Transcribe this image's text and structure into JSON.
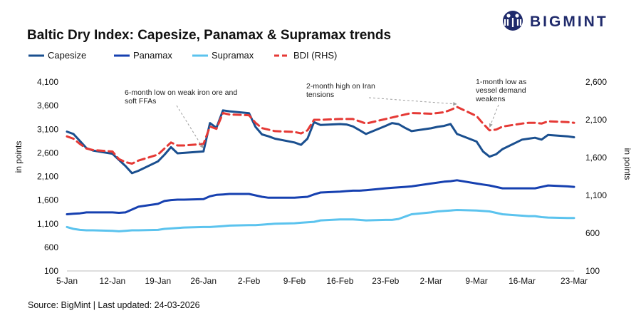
{
  "brand": {
    "name": "BIGMINT",
    "color": "#1f2a6b"
  },
  "source": "Source: BigMint | Last updated: 24-03-2026",
  "chart_data": {
    "type": "line",
    "title": "Baltic Dry Index: Capesize, Panamax & Supramax trends",
    "ylabel": "in points",
    "y2label": "in points",
    "ylim": [
      100,
      4100
    ],
    "y2lim": [
      100,
      2600
    ],
    "yticks": [
      "4,100",
      "3,600",
      "3,100",
      "2,600",
      "2,100",
      "1,600",
      "1,100",
      "600",
      "100"
    ],
    "y2ticks": [
      "2,600",
      "2,100",
      "1,600",
      "1,100",
      "600",
      "100"
    ],
    "xticks": [
      "5-Jan",
      "12-Jan",
      "19-Jan",
      "26-Jan",
      "2-Feb",
      "9-Feb",
      "16-Feb",
      "23-Feb",
      "2-Mar",
      "9-Mar",
      "16-Mar",
      "23-Mar"
    ],
    "grid": false,
    "legend_position": "top-left",
    "x": [
      5,
      6,
      7,
      8,
      9,
      12,
      13,
      14,
      15,
      16,
      19,
      20,
      21,
      22,
      23,
      26,
      27,
      28,
      29,
      30,
      33,
      34,
      35,
      36,
      37,
      40,
      41,
      42,
      43,
      44,
      47,
      48,
      49,
      50,
      51,
      54,
      55,
      56,
      57,
      58,
      61,
      62,
      63,
      64,
      65,
      68,
      69,
      70,
      71,
      72,
      75,
      76,
      77,
      78,
      79,
      82,
      83
    ],
    "x_unit": "day of year 2026 (5 = 5-Jan)",
    "series": [
      {
        "name": "Capesize",
        "axis": "left",
        "color": "#1a4f8f",
        "dash": false,
        "values": [
          3050,
          3000,
          2850,
          2700,
          2650,
          2580,
          2450,
          2320,
          2170,
          2220,
          2420,
          2560,
          2720,
          2590,
          2600,
          2630,
          3230,
          3130,
          3500,
          3480,
          3440,
          3150,
          2990,
          2950,
          2900,
          2820,
          2770,
          2900,
          3250,
          3190,
          3210,
          3200,
          3160,
          3080,
          3000,
          3170,
          3230,
          3210,
          3130,
          3060,
          3120,
          3150,
          3170,
          3210,
          3000,
          2840,
          2630,
          2520,
          2570,
          2680,
          2880,
          2900,
          2920,
          2880,
          2980,
          2950,
          2930
        ]
      },
      {
        "name": "Panamax",
        "axis": "left",
        "color": "#1640b0",
        "dash": false,
        "values": [
          1300,
          1310,
          1320,
          1340,
          1340,
          1340,
          1330,
          1340,
          1400,
          1460,
          1520,
          1580,
          1600,
          1610,
          1610,
          1620,
          1680,
          1710,
          1720,
          1730,
          1730,
          1700,
          1670,
          1650,
          1650,
          1650,
          1660,
          1670,
          1720,
          1760,
          1780,
          1790,
          1800,
          1800,
          1810,
          1850,
          1860,
          1870,
          1880,
          1890,
          1950,
          1970,
          1990,
          2000,
          2020,
          1950,
          1930,
          1910,
          1880,
          1850,
          1850,
          1850,
          1850,
          1880,
          1910,
          1890,
          1880
        ]
      },
      {
        "name": "Supramax",
        "axis": "left",
        "color": "#5bc3ee",
        "dash": false,
        "values": [
          1030,
          990,
          970,
          960,
          960,
          950,
          940,
          950,
          960,
          960,
          970,
          990,
          1000,
          1010,
          1020,
          1030,
          1030,
          1040,
          1050,
          1060,
          1070,
          1070,
          1080,
          1090,
          1100,
          1110,
          1120,
          1130,
          1140,
          1170,
          1190,
          1190,
          1190,
          1180,
          1170,
          1180,
          1180,
          1200,
          1250,
          1300,
          1340,
          1360,
          1370,
          1380,
          1390,
          1380,
          1370,
          1360,
          1330,
          1300,
          1270,
          1260,
          1260,
          1240,
          1230,
          1220,
          1220
        ]
      },
      {
        "name": "BDI (RHS)",
        "axis": "right",
        "color": "#e53935",
        "dash": true,
        "values": [
          1880,
          1850,
          1780,
          1720,
          1700,
          1680,
          1580,
          1540,
          1520,
          1560,
          1640,
          1720,
          1800,
          1760,
          1760,
          1780,
          2010,
          1980,
          2190,
          2170,
          2160,
          2060,
          1990,
          1970,
          1950,
          1940,
          1920,
          1960,
          2100,
          2100,
          2110,
          2110,
          2110,
          2080,
          2050,
          2110,
          2130,
          2150,
          2170,
          2190,
          2180,
          2190,
          2200,
          2230,
          2270,
          2150,
          2050,
          1960,
          1970,
          2010,
          2050,
          2060,
          2060,
          2050,
          2080,
          2070,
          2060
        ]
      }
    ],
    "annotations": [
      {
        "id": "anno-iron-ore",
        "lines": [
          "6-month low on weak iron ore and",
          "soft FFAs"
        ],
        "series": 0,
        "point_index": 15
      },
      {
        "id": "anno-iran",
        "lines": [
          "2-month high on Iran",
          "tensions"
        ],
        "series": 3,
        "point_index": 44
      },
      {
        "id": "anno-vessel-demand",
        "lines": [
          "1-month low as",
          "vessel demand",
          "weakens"
        ],
        "series": 3,
        "point_index": 47
      }
    ]
  }
}
